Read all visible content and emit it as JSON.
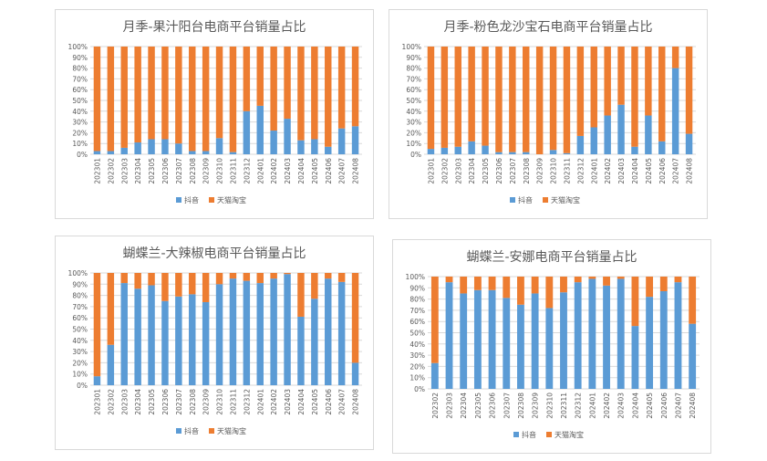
{
  "colors": {
    "douyin": "#5b9bd5",
    "tmall": "#ed7d31"
  },
  "chart_data": [
    {
      "type": "bar",
      "stacked": "percent",
      "title": "月季-果汁阳台电商平台销量占比",
      "categories": [
        "202301",
        "202302",
        "202303",
        "202304",
        "202305",
        "202306",
        "202307",
        "202308",
        "202309",
        "202310",
        "202311",
        "202312",
        "202401",
        "202402",
        "202403",
        "202404",
        "202405",
        "202406",
        "202407",
        "202408"
      ],
      "series": [
        {
          "name": "抖音",
          "values": [
            3,
            3,
            6,
            11,
            14,
            14,
            10,
            3,
            3,
            15,
            2,
            40,
            45,
            22,
            33,
            13,
            14,
            7,
            24,
            26
          ]
        },
        {
          "name": "天猫淘宝",
          "values": [
            97,
            97,
            94,
            89,
            86,
            86,
            90,
            97,
            97,
            85,
            98,
            60,
            55,
            78,
            67,
            87,
            86,
            93,
            76,
            74
          ]
        }
      ],
      "yticks": [
        "0%",
        "10%",
        "20%",
        "30%",
        "40%",
        "50%",
        "60%",
        "70%",
        "80%",
        "90%",
        "100%"
      ],
      "ylim": [
        0,
        100
      ],
      "grid": true,
      "legend": "bottom"
    },
    {
      "type": "bar",
      "stacked": "percent",
      "title": "月季-粉色龙沙宝石电商平台销量占比",
      "categories": [
        "202301",
        "202302",
        "202303",
        "202304",
        "202305",
        "202306",
        "202307",
        "202308",
        "202309",
        "202310",
        "202311",
        "202312",
        "202401",
        "202402",
        "202403",
        "202404",
        "202405",
        "202406",
        "202407",
        "202408"
      ],
      "series": [
        {
          "name": "抖音",
          "values": [
            5,
            6,
            7,
            12,
            8,
            2,
            2,
            2,
            0,
            4,
            1,
            17,
            25,
            36,
            46,
            7,
            36,
            12,
            80,
            19
          ]
        },
        {
          "name": "天猫淘宝",
          "values": [
            95,
            94,
            93,
            88,
            92,
            98,
            98,
            98,
            100,
            96,
            99,
            83,
            75,
            64,
            54,
            93,
            64,
            88,
            20,
            81
          ]
        }
      ],
      "yticks": [
        "0%",
        "10%",
        "20%",
        "30%",
        "40%",
        "50%",
        "60%",
        "70%",
        "80%",
        "90%",
        "100%"
      ],
      "ylim": [
        0,
        100
      ],
      "grid": true,
      "legend": "bottom"
    },
    {
      "type": "bar",
      "stacked": "percent",
      "title": "蝴蝶兰-大辣椒电商平台销量占比",
      "categories": [
        "202301",
        "202302",
        "202303",
        "202304",
        "202305",
        "202306",
        "202307",
        "202308",
        "202309",
        "202310",
        "202311",
        "202312",
        "202401",
        "202402",
        "202403",
        "202404",
        "202405",
        "202406",
        "202407",
        "202408"
      ],
      "series": [
        {
          "name": "抖音",
          "values": [
            8,
            36,
            91,
            86,
            89,
            75,
            79,
            81,
            74,
            90,
            95,
            93,
            91,
            95,
            99,
            61,
            77,
            95,
            92,
            20
          ]
        },
        {
          "name": "天猫淘宝",
          "values": [
            92,
            64,
            9,
            14,
            11,
            25,
            21,
            19,
            26,
            10,
            5,
            7,
            9,
            5,
            1,
            39,
            23,
            5,
            8,
            80
          ]
        }
      ],
      "yticks": [
        "0%",
        "10%",
        "20%",
        "30%",
        "40%",
        "50%",
        "60%",
        "70%",
        "80%",
        "90%",
        "100%"
      ],
      "ylim": [
        0,
        100
      ],
      "grid": true,
      "legend": "bottom"
    },
    {
      "type": "bar",
      "stacked": "percent",
      "title": "蝴蝶兰-安娜电商平台销量占比",
      "categories": [
        "202302",
        "202303",
        "202304",
        "202305",
        "202306",
        "202307",
        "202308",
        "202309",
        "202310",
        "202311",
        "202312",
        "202401",
        "202402",
        "202403",
        "202404",
        "202405",
        "202406",
        "202407",
        "202408"
      ],
      "series": [
        {
          "name": "抖音",
          "values": [
            23,
            95,
            85,
            88,
            88,
            81,
            75,
            85,
            72,
            86,
            95,
            98,
            92,
            98,
            56,
            82,
            87,
            95,
            58
          ]
        },
        {
          "name": "天猫淘宝",
          "values": [
            77,
            5,
            15,
            12,
            12,
            19,
            25,
            15,
            28,
            14,
            5,
            2,
            8,
            2,
            44,
            18,
            13,
            5,
            42
          ]
        }
      ],
      "yticks": [
        "0%",
        "10%",
        "20%",
        "30%",
        "40%",
        "50%",
        "60%",
        "70%",
        "80%",
        "90%",
        "100%"
      ],
      "ylim": [
        0,
        100
      ],
      "grid": true,
      "legend": "bottom"
    }
  ]
}
